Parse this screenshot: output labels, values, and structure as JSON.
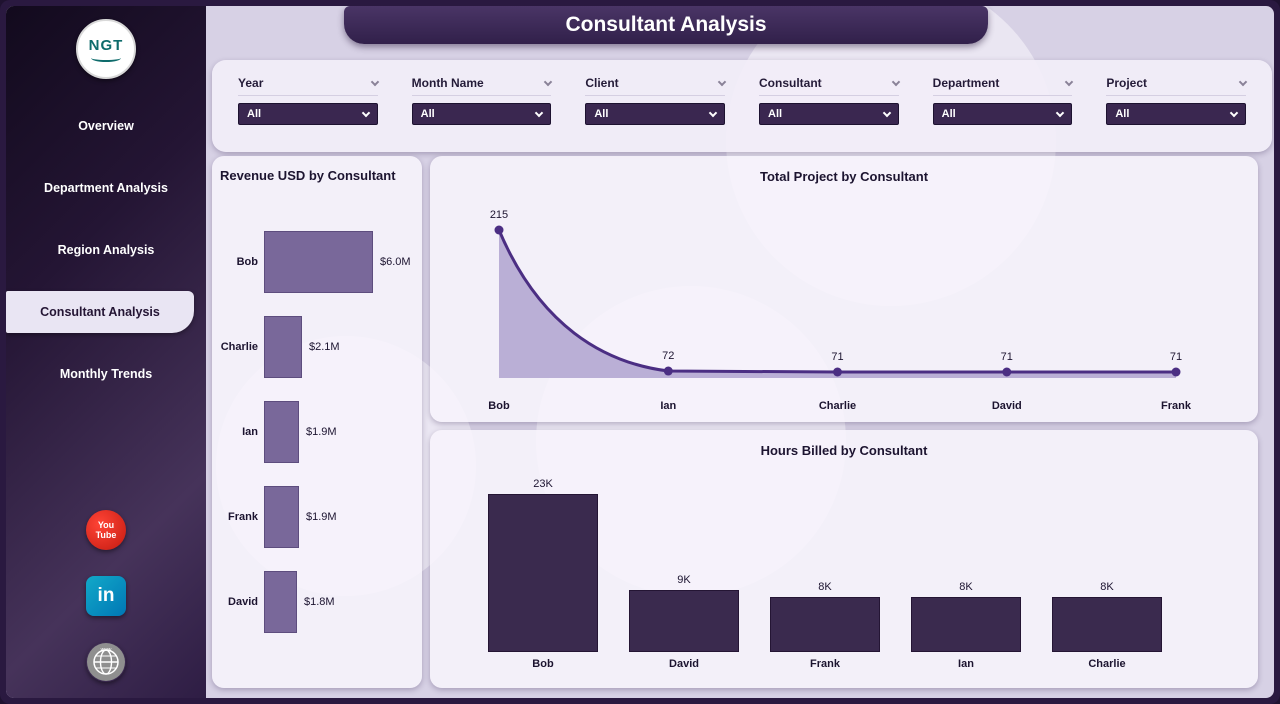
{
  "header": {
    "title": "Consultant Analysis"
  },
  "sidebar": {
    "logo_text": "NGT",
    "nav": [
      {
        "label": "Overview",
        "active": false
      },
      {
        "label": "Department Analysis",
        "active": false
      },
      {
        "label": "Region Analysis",
        "active": false
      },
      {
        "label": "Consultant Analysis",
        "active": true
      },
      {
        "label": "Monthly Trends",
        "active": false
      }
    ],
    "social": {
      "youtube": [
        "You",
        "Tube"
      ],
      "linkedin": "in",
      "website": "www"
    }
  },
  "filters": [
    {
      "label": "Year",
      "value": "All"
    },
    {
      "label": "Month Name",
      "value": "All"
    },
    {
      "label": "Client",
      "value": "All"
    },
    {
      "label": "Consultant",
      "value": "All"
    },
    {
      "label": "Department",
      "value": "All"
    },
    {
      "label": "Project",
      "value": "All"
    }
  ],
  "chart_data": [
    {
      "type": "bar",
      "orientation": "horizontal",
      "title": "Revenue USD by Consultant",
      "categories": [
        "Bob",
        "Charlie",
        "Ian",
        "Frank",
        "David"
      ],
      "values": [
        6.0,
        2.1,
        1.9,
        1.9,
        1.8
      ],
      "value_labels": [
        "$6.0M",
        "$2.1M",
        "$1.9M",
        "$1.9M",
        "$1.8M"
      ],
      "unit": "USD millions",
      "xlim": [
        0,
        6.5
      ],
      "bar_color": "#79689a"
    },
    {
      "type": "area",
      "title": "Total Project by Consultant",
      "categories": [
        "Bob",
        "Ian",
        "Charlie",
        "David",
        "Frank"
      ],
      "values": [
        215,
        72,
        71,
        71,
        71
      ],
      "ylim": [
        60,
        220
      ],
      "line_color": "#4b2e83",
      "fill_color": "#b4a7d2"
    },
    {
      "type": "bar",
      "orientation": "vertical",
      "title": "Hours Billed by Consultant",
      "categories": [
        "Bob",
        "David",
        "Frank",
        "Ian",
        "Charlie"
      ],
      "values": [
        23000,
        9000,
        8000,
        8000,
        8000
      ],
      "value_labels": [
        "23K",
        "9K",
        "8K",
        "8K",
        "8K"
      ],
      "ylim": [
        0,
        24000
      ],
      "bar_color": "#3a2a4e"
    }
  ],
  "colors": {
    "accent_dark": "#3a2750",
    "background": "#d7d1e5",
    "panel": "#f6f3fb",
    "logo_teal": "#0e6b6b"
  }
}
